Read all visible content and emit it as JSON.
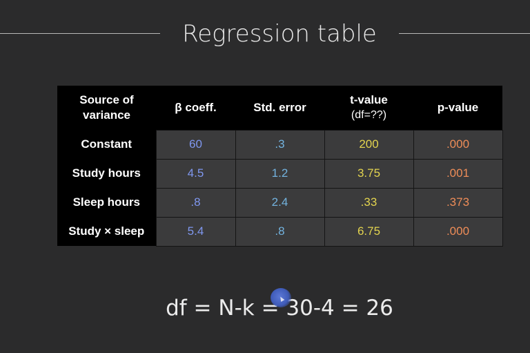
{
  "slide": {
    "title": "Regression table",
    "formula": "df = N-k = 30-4 = 26"
  },
  "table": {
    "headers": [
      {
        "label": "Source of variance",
        "sub": ""
      },
      {
        "label": "β coeff.",
        "sub": ""
      },
      {
        "label": "Std. error",
        "sub": ""
      },
      {
        "label": "t-value",
        "sub": "(df=??)"
      },
      {
        "label": "p-value",
        "sub": ""
      }
    ],
    "rows": [
      {
        "source": "Constant",
        "beta": "60",
        "se": ".3",
        "t": "200",
        "p": ".000"
      },
      {
        "source": "Study hours",
        "beta": "4.5",
        "se": "1.2",
        "t": "3.75",
        "p": ".001"
      },
      {
        "source": "Sleep hours",
        "beta": ".8",
        "se": "2.4",
        "t": ".33",
        "p": ".373"
      },
      {
        "source": "Study × sleep",
        "beta": "5.4",
        "se": ".8",
        "t": "6.75",
        "p": ".000"
      }
    ]
  },
  "colors": {
    "background": "#2b2b2c",
    "beta": "#7f97ef",
    "std_error": "#73b3df",
    "t_value": "#e3d44f",
    "p_value": "#ef8d58"
  }
}
